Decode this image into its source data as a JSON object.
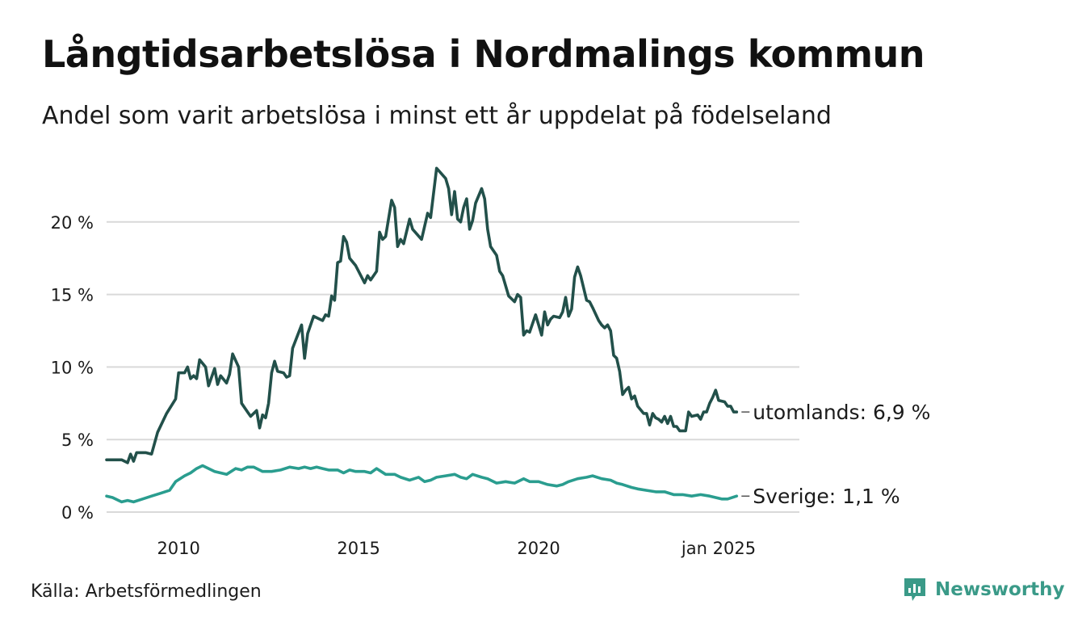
{
  "header": {
    "title": "Långtidsarbetslösa i Nordmalings kommun",
    "subtitle": "Andel som varit arbetslösa i minst ett år uppdelat på födelseland"
  },
  "footer": {
    "source": "Källa: Arbetsförmedlingen",
    "brand": "Newsworthy",
    "brand_color": "#3a9a88",
    "brand_icon": "bar-chart-speech-bubble-icon"
  },
  "chart_data": {
    "type": "line",
    "title": "Långtidsarbetslösa i Nordmalings kommun",
    "subtitle": "Andel som varit arbetslösa i minst ett år uppdelat på födelseland",
    "xlabel": "",
    "ylabel": "",
    "xlim": [
      "2008-01",
      "2025-01"
    ],
    "ylim": [
      0,
      25
    ],
    "grid": true,
    "y_ticks": [
      {
        "value": 0,
        "label": "0 %"
      },
      {
        "value": 5,
        "label": "5 %"
      },
      {
        "value": 10,
        "label": "10 %"
      },
      {
        "value": 15,
        "label": "15 %"
      },
      {
        "value": 20,
        "label": "20 %"
      }
    ],
    "x_ticks": [
      {
        "value": "2010-01",
        "label": "2010"
      },
      {
        "value": "2015-01",
        "label": "2015"
      },
      {
        "value": "2020-01",
        "label": "2020"
      },
      {
        "value": "2025-01",
        "label": "jan 2025"
      }
    ],
    "series": [
      {
        "name": "utomlands",
        "label": "utomlands: 6,9 %",
        "color": "#22504a",
        "points": [
          [
            "2008-01",
            3.6
          ],
          [
            "2008-02",
            3.6
          ],
          [
            "2008-04",
            3.6
          ],
          [
            "2008-06",
            3.6
          ],
          [
            "2008-08",
            3.4
          ],
          [
            "2008-09",
            4.0
          ],
          [
            "2008-10",
            3.5
          ],
          [
            "2008-11",
            4.1
          ],
          [
            "2009-02",
            4.1
          ],
          [
            "2009-04",
            4.0
          ],
          [
            "2009-06",
            5.5
          ],
          [
            "2009-09",
            6.8
          ],
          [
            "2009-12",
            7.8
          ],
          [
            "2010-01",
            9.6
          ],
          [
            "2010-03",
            9.6
          ],
          [
            "2010-04",
            10.0
          ],
          [
            "2010-05",
            9.2
          ],
          [
            "2010-06",
            9.4
          ],
          [
            "2010-07",
            9.2
          ],
          [
            "2010-08",
            10.5
          ],
          [
            "2010-10",
            10.0
          ],
          [
            "2010-11",
            8.7
          ],
          [
            "2011-01",
            9.9
          ],
          [
            "2011-02",
            8.8
          ],
          [
            "2011-03",
            9.4
          ],
          [
            "2011-05",
            8.9
          ],
          [
            "2011-06",
            9.5
          ],
          [
            "2011-07",
            10.9
          ],
          [
            "2011-09",
            10.0
          ],
          [
            "2011-10",
            7.5
          ],
          [
            "2011-12",
            6.9
          ],
          [
            "2012-01",
            6.6
          ],
          [
            "2012-03",
            7.0
          ],
          [
            "2012-04",
            5.8
          ],
          [
            "2012-05",
            6.7
          ],
          [
            "2012-06",
            6.5
          ],
          [
            "2012-07",
            7.5
          ],
          [
            "2012-08",
            9.6
          ],
          [
            "2012-09",
            10.4
          ],
          [
            "2012-10",
            9.7
          ],
          [
            "2012-12",
            9.6
          ],
          [
            "2013-01",
            9.3
          ],
          [
            "2013-02",
            9.4
          ],
          [
            "2013-03",
            11.3
          ],
          [
            "2013-06",
            12.9
          ],
          [
            "2013-07",
            10.6
          ],
          [
            "2013-08",
            12.3
          ],
          [
            "2013-10",
            13.5
          ],
          [
            "2013-12",
            13.3
          ],
          [
            "2014-01",
            13.2
          ],
          [
            "2014-02",
            13.6
          ],
          [
            "2014-03",
            13.5
          ],
          [
            "2014-04",
            14.9
          ],
          [
            "2014-05",
            14.6
          ],
          [
            "2014-06",
            17.2
          ],
          [
            "2014-07",
            17.3
          ],
          [
            "2014-08",
            19.0
          ],
          [
            "2014-09",
            18.6
          ],
          [
            "2014-10",
            17.5
          ],
          [
            "2014-12",
            17.0
          ],
          [
            "2015-03",
            15.8
          ],
          [
            "2015-04",
            16.3
          ],
          [
            "2015-05",
            16.0
          ],
          [
            "2015-07",
            16.6
          ],
          [
            "2015-08",
            19.3
          ],
          [
            "2015-09",
            18.8
          ],
          [
            "2015-10",
            19.0
          ],
          [
            "2015-12",
            21.5
          ],
          [
            "2016-01",
            21.0
          ],
          [
            "2016-02",
            18.3
          ],
          [
            "2016-03",
            18.8
          ],
          [
            "2016-04",
            18.5
          ],
          [
            "2016-06",
            20.2
          ],
          [
            "2016-07",
            19.5
          ],
          [
            "2016-10",
            18.8
          ],
          [
            "2016-12",
            20.6
          ],
          [
            "2017-01",
            20.3
          ],
          [
            "2017-03",
            23.7
          ],
          [
            "2017-06",
            23.0
          ],
          [
            "2017-07",
            22.3
          ],
          [
            "2017-08",
            20.5
          ],
          [
            "2017-09",
            22.1
          ],
          [
            "2017-10",
            20.2
          ],
          [
            "2017-11",
            20.0
          ],
          [
            "2017-12",
            21.0
          ],
          [
            "2018-01",
            21.6
          ],
          [
            "2018-02",
            19.5
          ],
          [
            "2018-03",
            20.1
          ],
          [
            "2018-04",
            21.3
          ],
          [
            "2018-06",
            22.3
          ],
          [
            "2018-07",
            21.6
          ],
          [
            "2018-08",
            19.5
          ],
          [
            "2018-09",
            18.3
          ],
          [
            "2018-11",
            17.7
          ],
          [
            "2018-12",
            16.6
          ],
          [
            "2019-01",
            16.3
          ],
          [
            "2019-03",
            14.9
          ],
          [
            "2019-04",
            14.7
          ],
          [
            "2019-05",
            14.5
          ],
          [
            "2019-06",
            15.0
          ],
          [
            "2019-07",
            14.8
          ],
          [
            "2019-08",
            12.2
          ],
          [
            "2019-09",
            12.5
          ],
          [
            "2019-10",
            12.4
          ],
          [
            "2019-12",
            13.6
          ],
          [
            "2020-01",
            12.9
          ],
          [
            "2020-02",
            12.2
          ],
          [
            "2020-03",
            13.8
          ],
          [
            "2020-04",
            12.9
          ],
          [
            "2020-05",
            13.3
          ],
          [
            "2020-06",
            13.5
          ],
          [
            "2020-08",
            13.4
          ],
          [
            "2020-09",
            13.8
          ],
          [
            "2020-10",
            14.8
          ],
          [
            "2020-11",
            13.5
          ],
          [
            "2020-12",
            14.0
          ],
          [
            "2021-01",
            16.2
          ],
          [
            "2021-02",
            16.9
          ],
          [
            "2021-03",
            16.3
          ],
          [
            "2021-05",
            14.6
          ],
          [
            "2021-06",
            14.5
          ],
          [
            "2021-07",
            14.1
          ],
          [
            "2021-09",
            13.2
          ],
          [
            "2021-10",
            12.9
          ],
          [
            "2021-11",
            12.7
          ],
          [
            "2021-12",
            12.9
          ],
          [
            "2022-01",
            12.5
          ],
          [
            "2022-02",
            10.8
          ],
          [
            "2022-03",
            10.6
          ],
          [
            "2022-04",
            9.7
          ],
          [
            "2022-05",
            8.1
          ],
          [
            "2022-06",
            8.4
          ],
          [
            "2022-07",
            8.6
          ],
          [
            "2022-08",
            7.8
          ],
          [
            "2022-09",
            8.0
          ],
          [
            "2022-10",
            7.3
          ],
          [
            "2022-12",
            6.8
          ],
          [
            "2023-01",
            6.8
          ],
          [
            "2023-02",
            6.0
          ],
          [
            "2023-03",
            6.8
          ],
          [
            "2023-04",
            6.5
          ],
          [
            "2023-05",
            6.4
          ],
          [
            "2023-06",
            6.2
          ],
          [
            "2023-07",
            6.6
          ],
          [
            "2023-08",
            6.1
          ],
          [
            "2023-09",
            6.6
          ],
          [
            "2023-10",
            5.9
          ],
          [
            "2023-11",
            5.9
          ],
          [
            "2023-12",
            5.6
          ],
          [
            "2024-02",
            5.6
          ],
          [
            "2024-03",
            6.9
          ],
          [
            "2024-04",
            6.6
          ],
          [
            "2024-06",
            6.7
          ],
          [
            "2024-07",
            6.4
          ],
          [
            "2024-08",
            6.9
          ],
          [
            "2024-09",
            6.9
          ],
          [
            "2024-10",
            7.5
          ],
          [
            "2024-11",
            7.9
          ],
          [
            "2024-12",
            8.4
          ],
          [
            "2025-01",
            7.7
          ],
          [
            "2025-03",
            7.6
          ],
          [
            "2025-04",
            7.3
          ],
          [
            "2025-05",
            7.3
          ],
          [
            "2025-06",
            6.9
          ],
          [
            "2025-07",
            6.9
          ]
        ]
      },
      {
        "name": "Sverige",
        "label": "Sverige: 1,1 %",
        "color": "#2a9d8f",
        "points": [
          [
            "2008-01",
            1.1
          ],
          [
            "2008-03",
            1.0
          ],
          [
            "2008-05",
            0.8
          ],
          [
            "2008-06",
            0.7
          ],
          [
            "2008-08",
            0.8
          ],
          [
            "2008-10",
            0.7
          ],
          [
            "2009-01",
            0.9
          ],
          [
            "2009-04",
            1.1
          ],
          [
            "2009-07",
            1.3
          ],
          [
            "2009-10",
            1.5
          ],
          [
            "2009-12",
            2.1
          ],
          [
            "2010-03",
            2.5
          ],
          [
            "2010-05",
            2.7
          ],
          [
            "2010-07",
            3.0
          ],
          [
            "2010-09",
            3.2
          ],
          [
            "2010-11",
            3.0
          ],
          [
            "2011-01",
            2.8
          ],
          [
            "2011-03",
            2.7
          ],
          [
            "2011-05",
            2.6
          ],
          [
            "2011-08",
            3.0
          ],
          [
            "2011-10",
            2.9
          ],
          [
            "2011-12",
            3.1
          ],
          [
            "2012-02",
            3.1
          ],
          [
            "2012-05",
            2.8
          ],
          [
            "2012-08",
            2.8
          ],
          [
            "2012-11",
            2.9
          ],
          [
            "2013-02",
            3.1
          ],
          [
            "2013-05",
            3.0
          ],
          [
            "2013-07",
            3.1
          ],
          [
            "2013-09",
            3.0
          ],
          [
            "2013-11",
            3.1
          ],
          [
            "2014-01",
            3.0
          ],
          [
            "2014-03",
            2.9
          ],
          [
            "2014-06",
            2.9
          ],
          [
            "2014-08",
            2.7
          ],
          [
            "2014-10",
            2.9
          ],
          [
            "2014-12",
            2.8
          ],
          [
            "2015-03",
            2.8
          ],
          [
            "2015-05",
            2.7
          ],
          [
            "2015-07",
            3.0
          ],
          [
            "2015-10",
            2.6
          ],
          [
            "2016-01",
            2.6
          ],
          [
            "2016-03",
            2.4
          ],
          [
            "2016-06",
            2.2
          ],
          [
            "2016-09",
            2.4
          ],
          [
            "2016-11",
            2.1
          ],
          [
            "2017-01",
            2.2
          ],
          [
            "2017-03",
            2.4
          ],
          [
            "2017-06",
            2.5
          ],
          [
            "2017-09",
            2.6
          ],
          [
            "2017-11",
            2.4
          ],
          [
            "2018-01",
            2.3
          ],
          [
            "2018-03",
            2.6
          ],
          [
            "2018-06",
            2.4
          ],
          [
            "2018-08",
            2.3
          ],
          [
            "2018-11",
            2.0
          ],
          [
            "2019-02",
            2.1
          ],
          [
            "2019-05",
            2.0
          ],
          [
            "2019-08",
            2.3
          ],
          [
            "2019-10",
            2.1
          ],
          [
            "2020-01",
            2.1
          ],
          [
            "2020-04",
            1.9
          ],
          [
            "2020-07",
            1.8
          ],
          [
            "2020-09",
            1.9
          ],
          [
            "2020-11",
            2.1
          ],
          [
            "2021-02",
            2.3
          ],
          [
            "2021-05",
            2.4
          ],
          [
            "2021-07",
            2.5
          ],
          [
            "2021-10",
            2.3
          ],
          [
            "2022-01",
            2.2
          ],
          [
            "2022-03",
            2.0
          ],
          [
            "2022-05",
            1.9
          ],
          [
            "2022-08",
            1.7
          ],
          [
            "2022-10",
            1.6
          ],
          [
            "2023-01",
            1.5
          ],
          [
            "2023-04",
            1.4
          ],
          [
            "2023-07",
            1.4
          ],
          [
            "2023-10",
            1.2
          ],
          [
            "2024-01",
            1.2
          ],
          [
            "2024-04",
            1.1
          ],
          [
            "2024-07",
            1.2
          ],
          [
            "2024-10",
            1.1
          ],
          [
            "2024-12",
            1.0
          ],
          [
            "2025-02",
            0.9
          ],
          [
            "2025-04",
            0.9
          ],
          [
            "2025-07",
            1.1
          ]
        ]
      }
    ]
  }
}
